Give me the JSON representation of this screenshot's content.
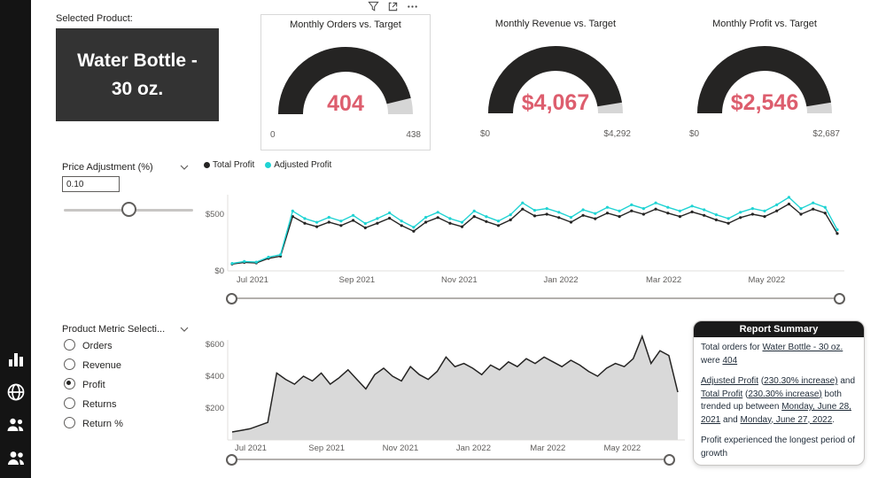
{
  "colors": {
    "accent": "#dd5e6e",
    "gauge_fill": "#252423",
    "gauge_rest": "#d6d6d6",
    "total_profit": "#252423",
    "adjusted_profit": "#1fd3d3",
    "area_fill": "#d9d9d9",
    "area_stroke": "#252423"
  },
  "sidebar": {
    "icons": [
      {
        "name": "bar-chart"
      },
      {
        "name": "globe"
      },
      {
        "name": "team"
      },
      {
        "name": "people"
      }
    ]
  },
  "header": {
    "selected_product_label": "Selected Product:",
    "selected_product": "Water Bottle - 30 oz."
  },
  "gauges": [
    {
      "title": "Monthly Orders vs. Target",
      "value": "404",
      "min": "0",
      "max": "438",
      "fraction": 0.922
    },
    {
      "title": "Monthly Revenue vs. Target",
      "value": "$4,067",
      "min": "$0",
      "max": "$4,292",
      "fraction": 0.948
    },
    {
      "title": "Monthly Profit vs. Target",
      "value": "$2,546",
      "min": "$0",
      "max": "$2,687",
      "fraction": 0.948
    }
  ],
  "price_adjustment": {
    "label": "Price Adjustment (%)",
    "value": "0.10"
  },
  "metric_selection": {
    "label": "Product Metric Selecti...",
    "options": [
      {
        "label": "Orders",
        "selected": false
      },
      {
        "label": "Revenue",
        "selected": false
      },
      {
        "label": "Profit",
        "selected": true
      },
      {
        "label": "Returns",
        "selected": false
      },
      {
        "label": "Return %",
        "selected": false
      }
    ]
  },
  "chart_data": {
    "note": "see charts.line_chart and charts.area_chart"
  },
  "charts": {
    "line_chart": {
      "type": "line",
      "x_ticks": [
        "Jul 2021",
        "Sep 2021",
        "Nov 2021",
        "Jan 2022",
        "Mar 2022",
        "May 2022"
      ],
      "y_ticks": [
        {
          "value": 0,
          "label": "$0"
        },
        {
          "value": 500,
          "label": "$500"
        }
      ],
      "ylim": [
        0,
        700
      ],
      "series": [
        {
          "name": "Total Profit",
          "color": "#252423",
          "values": [
            60,
            75,
            70,
            110,
            130,
            480,
            420,
            390,
            430,
            400,
            445,
            380,
            420,
            465,
            400,
            350,
            430,
            470,
            420,
            390,
            480,
            435,
            400,
            450,
            545,
            485,
            500,
            470,
            430,
            490,
            460,
            510,
            480,
            530,
            500,
            545,
            510,
            480,
            520,
            490,
            450,
            420,
            470,
            500,
            480,
            530,
            590,
            500,
            545,
            510,
            330
          ]
        },
        {
          "name": "Adjusted Profit",
          "color": "#1fd3d3",
          "values": [
            66,
            83,
            77,
            121,
            143,
            528,
            462,
            429,
            473,
            440,
            490,
            418,
            462,
            512,
            440,
            385,
            473,
            517,
            462,
            429,
            528,
            479,
            440,
            495,
            600,
            534,
            550,
            517,
            473,
            539,
            506,
            561,
            528,
            583,
            550,
            600,
            561,
            528,
            572,
            539,
            495,
            462,
            517,
            550,
            528,
            583,
            649,
            550,
            600,
            561,
            363
          ]
        }
      ]
    },
    "area_chart": {
      "type": "area",
      "x_ticks": [
        "Jul 2021",
        "Sep 2021",
        "Nov 2021",
        "Jan 2022",
        "Mar 2022",
        "May 2022"
      ],
      "y_ticks": [
        {
          "value": 200,
          "label": "$200"
        },
        {
          "value": 400,
          "label": "$400"
        },
        {
          "value": 600,
          "label": "$600"
        }
      ],
      "ylim": [
        0,
        700
      ],
      "series": [
        {
          "name": "Profit",
          "color": "#252423",
          "fill": "#d9d9d9",
          "values": [
            50,
            60,
            70,
            90,
            110,
            420,
            380,
            350,
            400,
            370,
            420,
            350,
            390,
            440,
            380,
            320,
            410,
            450,
            400,
            370,
            460,
            410,
            380,
            430,
            520,
            460,
            480,
            450,
            410,
            470,
            440,
            490,
            460,
            510,
            480,
            520,
            490,
            460,
            500,
            470,
            430,
            400,
            450,
            480,
            460,
            510,
            650,
            480,
            560,
            530,
            300
          ]
        }
      ]
    }
  },
  "report_summary": {
    "title": "Report Summary",
    "paragraphs": [
      [
        {
          "t": "Total orders for "
        },
        {
          "t": "Water Bottle - 30 oz.",
          "u": true
        },
        {
          "t": " were "
        },
        {
          "t": "404",
          "u": true
        }
      ],
      [
        {
          "t": "Adjusted Profit",
          "u": true
        },
        {
          "t": " ("
        },
        {
          "t": "230.30% increase)",
          "u": true
        },
        {
          "t": " and "
        },
        {
          "t": "Total Profit",
          "u": true
        },
        {
          "t": " ("
        },
        {
          "t": "230.30% increase)",
          "u": true
        },
        {
          "t": " both trended up between "
        },
        {
          "t": "Monday, June 28, 2021",
          "u": true
        },
        {
          "t": " and "
        },
        {
          "t": "Monday, June 27, 2022",
          "u": true
        },
        {
          "t": "."
        }
      ],
      [
        {
          "t": "Profit experienced the longest period of growth"
        }
      ]
    ]
  }
}
